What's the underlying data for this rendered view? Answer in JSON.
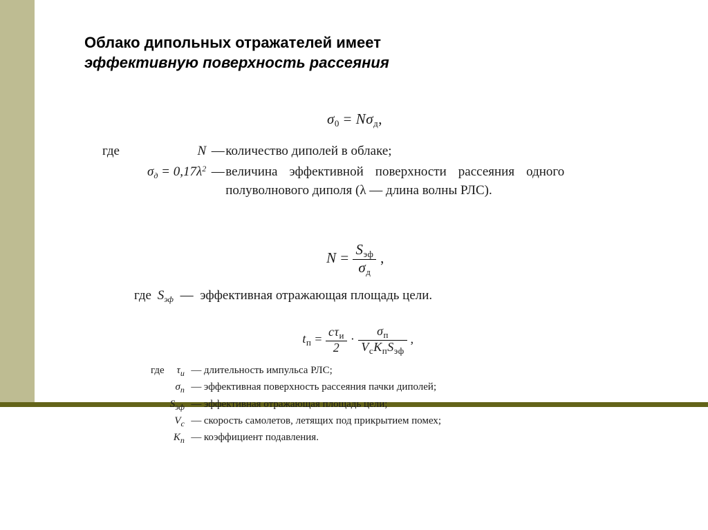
{
  "colors": {
    "sidebar": "#bebc92",
    "accent_bar": "#636319",
    "text": "#000000"
  },
  "title": {
    "line1_bold": "Облако дипольных отражателей имеет",
    "line2_italic": "эффективную поверхность рассеяния"
  },
  "block1": {
    "equation_html": "σ<span class='sub'>0</span> <span class='rm'>=</span> Nσ<span class='sub'>д</span><span class='rm'>,</span>",
    "legend": [
      {
        "sym_html": "N",
        "text": "количество диполей в облаке;",
        "prefix": "где"
      },
      {
        "sym_html": "σ<span class='sub'>д</span> = 0,17λ<span class='sup'>2</span>",
        "text": "величина эффективной поверхности рассеяния одного полуволнового диполя (λ — длина волны РЛС)."
      }
    ]
  },
  "block2": {
    "eq_lhs": "N",
    "eq_num_html": "S<span class='sub'>эф</span>",
    "eq_den_html": "σ<span class='sub'>д</span>",
    "eq_tail": ",",
    "legend_prefix": "где",
    "legend_sym_html": "S<span class='sub'>эф</span>",
    "legend_text": "эффективная отражающая площадь цели."
  },
  "block3": {
    "eq_lhs_html": "t<span class='sub'>п</span>",
    "frac1_num_html": "cτ<span class='sub'>и</span>",
    "frac1_den_html": "2",
    "frac2_num_html": "σ<span class='sub'>п</span>",
    "frac2_den_html": "V<span class='sub'>c</span>K<span class='sub'>п</span>S<span class='sub'>эф</span>",
    "eq_tail": ",",
    "legend": [
      {
        "sym_html": "τ<span class='sub'>и</span>",
        "text": "длительность импульса РЛС;",
        "prefix": "где"
      },
      {
        "sym_html": "σ<span class='sub'>п</span>",
        "text": "эффективная поверхность рассеяния пачки диполей;"
      },
      {
        "sym_html": "S<span class='sub'>эф</span>",
        "text": "эффективная отражающая площадь цели;"
      },
      {
        "sym_html": "V<span class='sub'>c</span>",
        "text": "скорость самолетов, летящих под прикрытием помех;"
      },
      {
        "sym_html": "K<span class='sub'>п</span>",
        "text": "коэффициент подавления."
      }
    ]
  }
}
